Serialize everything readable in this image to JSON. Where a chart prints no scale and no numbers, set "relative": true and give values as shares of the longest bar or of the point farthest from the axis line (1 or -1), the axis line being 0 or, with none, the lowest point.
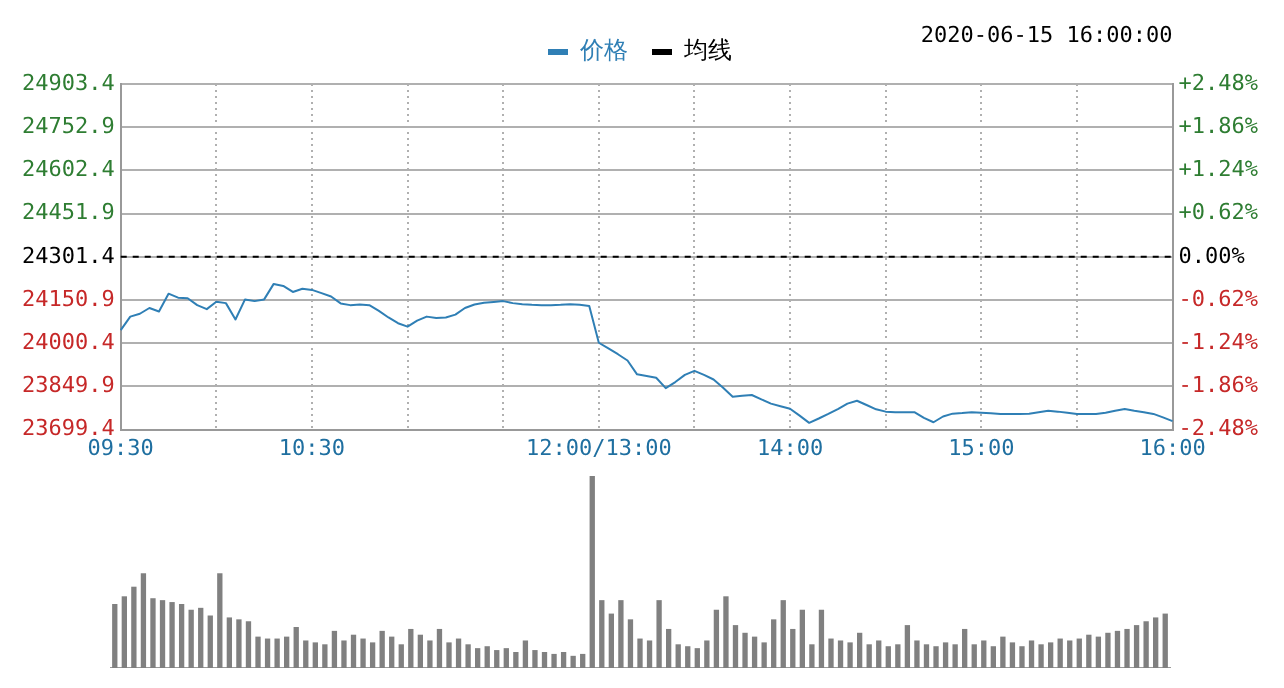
{
  "chart_data": [
    {
      "type": "line",
      "annotations": [
        "2020-06-15 16:00:00"
      ],
      "legend": "top",
      "grid": true,
      "marker": "none",
      "line_style": "solid",
      "categories": [
        "09:30",
        null,
        null,
        null,
        null,
        null,
        null,
        null,
        null,
        null,
        null,
        null,
        null,
        null,
        null,
        null,
        null,
        null,
        null,
        null,
        "10:30",
        null,
        null,
        null,
        null,
        null,
        null,
        null,
        null,
        null,
        null,
        null,
        null,
        null,
        null,
        null,
        null,
        null,
        null,
        null,
        null,
        null,
        null,
        null,
        null,
        null,
        null,
        null,
        null,
        null,
        "12:00/13:00",
        null,
        null,
        null,
        null,
        null,
        null,
        null,
        null,
        null,
        null,
        null,
        null,
        null,
        null,
        null,
        null,
        null,
        null,
        null,
        "14:00",
        null,
        null,
        null,
        null,
        null,
        null,
        null,
        null,
        null,
        null,
        null,
        null,
        null,
        null,
        null,
        null,
        null,
        null,
        null,
        "15:00",
        null,
        null,
        null,
        null,
        null,
        null,
        null,
        null,
        null,
        null,
        null,
        null,
        null,
        null,
        null,
        null,
        null,
        null,
        null,
        "16:00"
      ],
      "series": [
        {
          "name": "价格",
          "color": "#2f7fb5",
          "values": [
            24046,
            24093,
            24103,
            24123,
            24111,
            24173,
            24159,
            24157,
            24133,
            24119,
            24145,
            24140,
            24083,
            24153,
            24147,
            24153,
            24207,
            24200,
            24179,
            24190,
            24186,
            24175,
            24163,
            24139,
            24133,
            24135,
            24133,
            24113,
            24090,
            24070,
            24058,
            24079,
            24093,
            24088,
            24090,
            24100,
            24123,
            24135,
            24141,
            24144,
            24147,
            24140,
            24136,
            24134,
            24133,
            24133,
            24134,
            24136,
            24134,
            24130,
            24002,
            23982,
            23962,
            23940,
            23892,
            23886,
            23880,
            23844,
            23865,
            23890,
            23904,
            23890,
            23874,
            23845,
            23814,
            23817,
            23820,
            23805,
            23790,
            23781,
            23772,
            23748,
            23723,
            23738,
            23754,
            23771,
            23790,
            23800,
            23785,
            23770,
            23762,
            23760,
            23760,
            23760,
            23740,
            23725,
            23745,
            23755,
            23757,
            23760,
            23758,
            23756,
            23754,
            23754,
            23754,
            23755,
            23760,
            23765,
            23762,
            23758,
            23754,
            23754,
            23754,
            23758,
            23765,
            23771,
            23765,
            23760,
            23754,
            23742,
            23729
          ]
        },
        {
          "name": "均线",
          "color": "#000000",
          "values": [
            null,
            null,
            null,
            null,
            null,
            null,
            null,
            null,
            null,
            null,
            null,
            null,
            null,
            null,
            null,
            null,
            null,
            null,
            null,
            null,
            null,
            null,
            null,
            null,
            null,
            null,
            null,
            null,
            null,
            null,
            null,
            null,
            null,
            null,
            null,
            null,
            null,
            null,
            null,
            null,
            null,
            null,
            null,
            null,
            null,
            null,
            null,
            null,
            null,
            null,
            null,
            null,
            null,
            null,
            null,
            null,
            null,
            null,
            null,
            null,
            null,
            null,
            null,
            null,
            null,
            null,
            null,
            null,
            null,
            null,
            null,
            null,
            null,
            null,
            null,
            null,
            null,
            null,
            null,
            null,
            null,
            null,
            null,
            null,
            null,
            null,
            null,
            null,
            null,
            null,
            null,
            null,
            null,
            null,
            null,
            null,
            null,
            null,
            null,
            null,
            null,
            null,
            null,
            null,
            null,
            null,
            null,
            null,
            null,
            null,
            null
          ]
        }
      ],
      "ylim": [
        23699.4,
        24903.4
      ],
      "yticks": [
        23699.4,
        23849.9,
        24000.4,
        24150.9,
        24301.4,
        24451.9,
        24602.4,
        24752.9,
        24903.4
      ],
      "y2lim": [
        -2.48,
        2.48
      ],
      "y2ticks": [
        {
          "value": -2.48,
          "label": "-2.48%"
        },
        {
          "value": -1.86,
          "label": "-1.86%"
        },
        {
          "value": -1.24,
          "label": "-1.24%"
        },
        {
          "value": -0.62,
          "label": "-0.62%"
        },
        {
          "value": 0,
          "label": "0.00%"
        },
        {
          "value": 0.62,
          "label": "+0.62%"
        },
        {
          "value": 1.24,
          "label": "+1.24%"
        },
        {
          "value": 1.86,
          "label": "+1.86%"
        },
        {
          "value": 2.48,
          "label": "+2.48%"
        }
      ],
      "ref_lines": [
        {
          "axis": "y",
          "value": 24301.4,
          "color": "#000000",
          "line_style": "dashed"
        }
      ]
    },
    {
      "type": "bar",
      "relative": true,
      "tick_labels": false,
      "color": "#808080",
      "categories": [
        null,
        null,
        null,
        null,
        null,
        null,
        null,
        null,
        null,
        null,
        null,
        null,
        null,
        null,
        null,
        null,
        null,
        null,
        null,
        null,
        null,
        null,
        null,
        null,
        null,
        null,
        null,
        null,
        null,
        null,
        null,
        null,
        null,
        null,
        null,
        null,
        null,
        null,
        null,
        null,
        null,
        null,
        null,
        null,
        null,
        null,
        null,
        null,
        null,
        null,
        null,
        null,
        null,
        null,
        null,
        null,
        null,
        null,
        null,
        null,
        null,
        null,
        null,
        null,
        null,
        null,
        null,
        null,
        null,
        null,
        null,
        null,
        null,
        null,
        null,
        null,
        null,
        null,
        null,
        null,
        null,
        null,
        null,
        null,
        null,
        null,
        null,
        null,
        null,
        null,
        null,
        null,
        null,
        null,
        null,
        null,
        null,
        null,
        null,
        null,
        null,
        null,
        null,
        null,
        null,
        null,
        null,
        null,
        null,
        null,
        null
      ],
      "values": [
        0.33,
        0.37,
        0.42,
        0.49,
        0.36,
        0.35,
        0.34,
        0.33,
        0.3,
        0.31,
        0.27,
        0.49,
        0.26,
        0.25,
        0.24,
        0.16,
        0.15,
        0.15,
        0.16,
        0.21,
        0.14,
        0.13,
        0.12,
        0.19,
        0.14,
        0.17,
        0.15,
        0.13,
        0.19,
        0.16,
        0.12,
        0.2,
        0.17,
        0.14,
        0.2,
        0.13,
        0.15,
        0.12,
        0.1,
        0.11,
        0.09,
        0.1,
        0.08,
        0.14,
        0.09,
        0.08,
        0.07,
        0.08,
        0.06,
        0.07,
        1,
        0.35,
        0.28,
        0.35,
        0.25,
        0.15,
        0.14,
        0.35,
        0.2,
        0.12,
        0.11,
        0.1,
        0.14,
        0.3,
        0.37,
        0.22,
        0.18,
        0.16,
        0.13,
        0.25,
        0.35,
        0.2,
        0.3,
        0.12,
        0.3,
        0.15,
        0.14,
        0.13,
        0.18,
        0.12,
        0.14,
        0.11,
        0.12,
        0.22,
        0.14,
        0.12,
        0.11,
        0.13,
        0.12,
        0.2,
        0.12,
        0.14,
        0.11,
        0.16,
        0.13,
        0.11,
        0.14,
        0.12,
        0.13,
        0.15,
        0.14,
        0.15,
        0.17,
        0.16,
        0.18,
        0.19,
        0.2,
        0.22,
        0.24,
        0.26,
        0.28
      ]
    }
  ]
}
